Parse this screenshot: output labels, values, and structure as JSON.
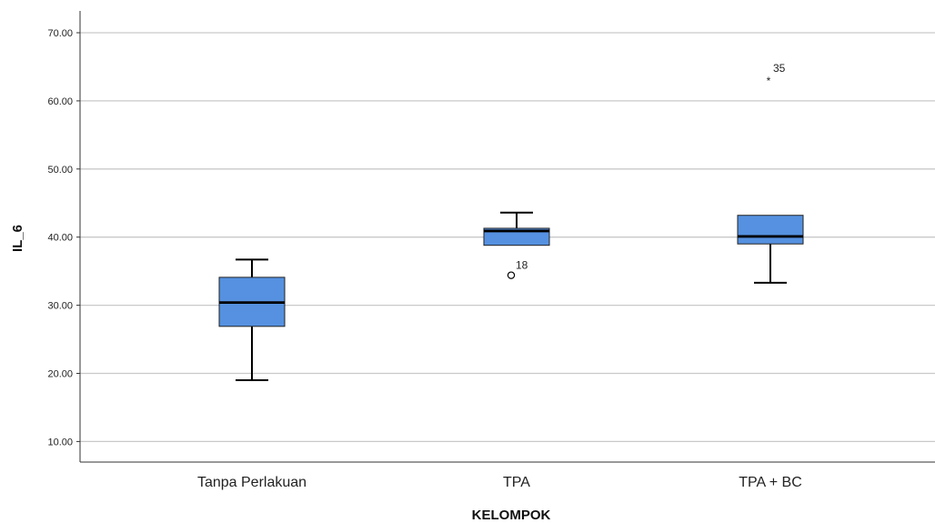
{
  "chart_data": {
    "type": "boxplot",
    "title": "",
    "xlabel": "KELOMPOK",
    "ylabel": "IL_6",
    "ylim": [
      6,
      73
    ],
    "yticks": [
      "10.00",
      "20.00",
      "30.00",
      "40.00",
      "50.00",
      "60.00",
      "70.00"
    ],
    "grid": "horizontal",
    "box_color": "#5591e0",
    "categories": [
      "Tanpa Perlakuan",
      "TPA",
      "TPA + BC"
    ],
    "boxes": [
      {
        "category": "Tanpa Perlakuan",
        "min": 19.0,
        "q1": 26.9,
        "median": 30.4,
        "q3": 34.1,
        "max": 36.7,
        "outliers": []
      },
      {
        "category": "TPA",
        "min": 38.8,
        "q1": 38.8,
        "median": 40.9,
        "q3": 41.3,
        "max": 43.6,
        "outliers": [
          {
            "value": 34.4,
            "label": "18",
            "marker": "circle"
          }
        ]
      },
      {
        "category": "TPA + BC",
        "min": 33.3,
        "q1": 39.0,
        "median": 40.1,
        "q3": 43.2,
        "max": 43.2,
        "outliers": [
          {
            "value": 63.2,
            "label": "35",
            "marker": "star"
          }
        ]
      }
    ]
  }
}
